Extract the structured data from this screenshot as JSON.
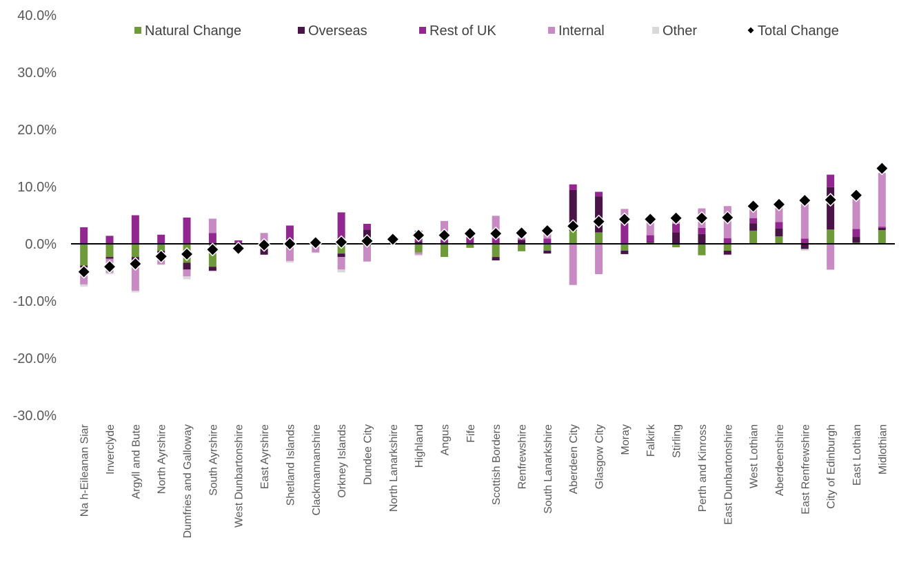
{
  "chart_data": {
    "type": "bar",
    "stacked": true,
    "y_unit": "%",
    "ylim": [
      -30,
      40
    ],
    "yticks": [
      "40.0%",
      "30.0%",
      "20.0%",
      "10.0%",
      "0.0%",
      "-10.0%",
      "-20.0%",
      "-30.0%"
    ],
    "ytick_values": [
      40,
      30,
      20,
      10,
      0,
      -10,
      -20,
      -30
    ],
    "grid": false,
    "legend_position": "top",
    "categories": [
      "Na h-Eileanan Siar",
      "Inverclyde",
      "Argyll and Bute",
      "North Ayrshire",
      "Dumfries and Galloway",
      "South Ayrshire",
      "West Dunbartonshire",
      "East Ayrshire",
      "Shetland Islands",
      "Clackmannanshire",
      "Orkney Islands",
      "Dundee City",
      "North Lanarkshire",
      "Highland",
      "Angus",
      "Fife",
      "Scottish Borders",
      "Renfrewshire",
      "South Lanarkshire",
      "Aberdeen City",
      "Glasgow City",
      "Moray",
      "Falkirk",
      "Stirling",
      "Perth and Kinross",
      "East Dunbartonshire",
      "West Lothian",
      "Aberdeenshire",
      "East Renfrewshire",
      "City of Edinburgh",
      "East Lothian",
      "Midlothian"
    ],
    "series": [
      {
        "name": "Natural Change",
        "color": "#6f9a3a",
        "values": [
          -3.8,
          -2.3,
          -2.3,
          -1.2,
          -3.3,
          -4.0,
          -0.4,
          -0.9,
          -0.5,
          -0.2,
          -1.7,
          -0.3,
          0.0,
          -1.5,
          -2.3,
          -0.7,
          -2.3,
          -1.3,
          -1.2,
          2.3,
          2.0,
          -1.2,
          0.2,
          -0.6,
          -2.0,
          -1.2,
          2.3,
          1.3,
          0.1,
          2.5,
          0.2,
          2.4
        ]
      },
      {
        "name": "Overseas",
        "color": "#4b1448",
        "values": [
          -0.3,
          -0.3,
          -1.0,
          -0.4,
          -1.2,
          -0.7,
          -0.1,
          -1.0,
          0.1,
          0.1,
          -0.6,
          2.5,
          0.2,
          0.3,
          0.2,
          0.2,
          -0.6,
          0.6,
          -0.5,
          7.1,
          6.3,
          -0.6,
          0.1,
          2.0,
          1.7,
          -0.7,
          1.3,
          1.4,
          -0.9,
          7.4,
          1.0,
          0.4
        ]
      },
      {
        "name": "Rest of UK",
        "color": "#92278f",
        "values": [
          2.9,
          1.4,
          5.0,
          1.6,
          4.6,
          1.9,
          0.6,
          0.4,
          3.1,
          0.3,
          5.5,
          1.0,
          0.2,
          2.0,
          0.5,
          1.0,
          1.0,
          0.2,
          0.9,
          1.0,
          0.8,
          3.6,
          1.2,
          1.5,
          1.1,
          1.0,
          0.9,
          1.1,
          0.8,
          2.2,
          1.4,
          0.2
        ]
      },
      {
        "name": "Internal",
        "color": "#c88ac3",
        "values": [
          -3.0,
          -2.5,
          -4.9,
          -2.0,
          -1.2,
          2.5,
          0.0,
          1.5,
          -2.5,
          -1.3,
          -2.2,
          -2.8,
          0.3,
          -0.4,
          3.3,
          0.2,
          3.9,
          0.3,
          2.1,
          -7.2,
          -5.3,
          2.5,
          2.9,
          0.8,
          3.4,
          5.6,
          2.0,
          3.3,
          6.2,
          -4.5,
          5.9,
          9.4
        ]
      },
      {
        "name": "Other",
        "color": "#d9d9d9",
        "values": [
          -0.4,
          -0.2,
          -0.3,
          -0.1,
          -0.5,
          -0.2,
          0.0,
          0.0,
          -0.3,
          -0.1,
          -0.5,
          0.0,
          0.0,
          -0.2,
          0.0,
          0.0,
          0.0,
          0.0,
          0.0,
          0.0,
          0.0,
          0.0,
          0.0,
          0.0,
          0.0,
          -0.1,
          0.0,
          0.0,
          -0.3,
          -0.1,
          0.0,
          0.0
        ]
      },
      {
        "name": "Total Change",
        "color": "#000000",
        "marker": "diamond",
        "values": [
          -4.9,
          -4.0,
          -3.5,
          -2.2,
          -1.8,
          -1.0,
          -0.8,
          -0.2,
          0.0,
          0.2,
          0.3,
          0.5,
          0.8,
          1.5,
          1.5,
          1.8,
          1.8,
          1.9,
          2.3,
          3.1,
          3.9,
          4.3,
          4.3,
          4.5,
          4.5,
          4.6,
          6.6,
          6.9,
          7.6,
          7.7,
          8.5,
          13.2
        ]
      }
    ]
  }
}
